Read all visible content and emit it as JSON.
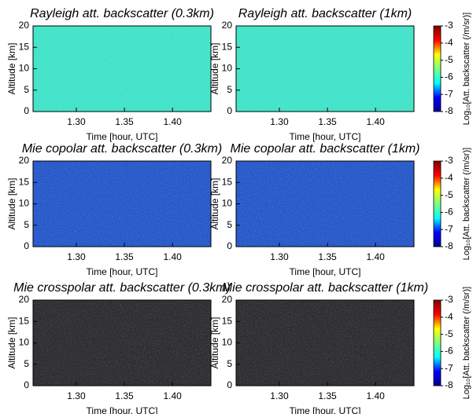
{
  "chart_data": [
    {
      "type": "heatmap",
      "title": "Rayleigh att. backscatter (0.3km)",
      "x_label": "Time [hour, UTC]",
      "y_label": "Altitude [km]",
      "xlim": [
        1.255,
        1.44
      ],
      "xticks": [
        {
          "value": 1.3,
          "label": "1.30"
        },
        {
          "value": 1.35,
          "label": "1.35"
        },
        {
          "value": 1.4,
          "label": "1.40"
        }
      ],
      "ylim": [
        0,
        20
      ],
      "yticks": [
        0,
        5,
        10,
        15,
        20
      ],
      "color": "#3fe3c8"
    },
    {
      "type": "heatmap",
      "title": "Rayleigh att. backscatter (1km)",
      "x_label": "Time [hour, UTC]",
      "y_label": "Altitude [km]",
      "xlim": [
        1.255,
        1.44
      ],
      "xticks": [
        {
          "value": 1.3,
          "label": "1.30"
        },
        {
          "value": 1.35,
          "label": "1.35"
        },
        {
          "value": 1.4,
          "label": "1.40"
        }
      ],
      "ylim": [
        0,
        20
      ],
      "yticks": [
        0,
        5,
        10,
        15,
        20
      ],
      "color": "#3fe3c8",
      "colorbar": {
        "label": "Log₁₀[Att. backscatter (/m/sr)]",
        "clim": [
          -8,
          -3
        ],
        "ticks": [
          -3,
          -4,
          -5,
          -6,
          -7,
          -8
        ],
        "colormap": [
          "#00008f",
          "#0000ff",
          "#00ffff",
          "#7fff7f",
          "#ffff00",
          "#ff0000",
          "#800000"
        ]
      }
    },
    {
      "type": "heatmap",
      "title": "Mie copolar att. backscatter (0.3km)",
      "x_label": "Time [hour, UTC]",
      "y_label": "Altitude [km]",
      "xlim": [
        1.255,
        1.44
      ],
      "xticks": [
        {
          "value": 1.3,
          "label": "1.30"
        },
        {
          "value": 1.35,
          "label": "1.35"
        },
        {
          "value": 1.4,
          "label": "1.40"
        }
      ],
      "ylim": [
        0,
        20
      ],
      "yticks": [
        0,
        5,
        10,
        15,
        20
      ],
      "color": "#2457c8"
    },
    {
      "type": "heatmap",
      "title": "Mie copolar att. backscatter (1km)",
      "x_label": "Time [hour, UTC]",
      "y_label": "Altitude [km]",
      "xlim": [
        1.255,
        1.44
      ],
      "xticks": [
        {
          "value": 1.3,
          "label": "1.30"
        },
        {
          "value": 1.35,
          "label": "1.35"
        },
        {
          "value": 1.4,
          "label": "1.40"
        }
      ],
      "ylim": [
        0,
        20
      ],
      "yticks": [
        0,
        5,
        10,
        15,
        20
      ],
      "color": "#2457c8",
      "colorbar": {
        "label": "Log₁₀[Att. backscatter (/m/sr)]",
        "clim": [
          -8,
          -3
        ],
        "ticks": [
          -3,
          -4,
          -5,
          -6,
          -7,
          -8
        ],
        "colormap": [
          "#00008f",
          "#0000ff",
          "#00ffff",
          "#7fff7f",
          "#ffff00",
          "#ff0000",
          "#800000"
        ]
      }
    },
    {
      "type": "heatmap",
      "title": "Mie crosspolar att. backscatter (0.3km)",
      "x_label": "Time [hour, UTC]",
      "y_label": "Altitude [km]",
      "xlim": [
        1.255,
        1.44
      ],
      "xticks": [
        {
          "value": 1.3,
          "label": "1.30"
        },
        {
          "value": 1.35,
          "label": "1.35"
        },
        {
          "value": 1.4,
          "label": "1.40"
        }
      ],
      "ylim": [
        0,
        20
      ],
      "yticks": [
        0,
        5,
        10,
        15,
        20
      ],
      "color": "#2c2c30"
    },
    {
      "type": "heatmap",
      "title": "Mie crosspolar att. backscatter (1km)",
      "x_label": "Time [hour, UTC]",
      "y_label": "Altitude [km]",
      "xlim": [
        1.255,
        1.44
      ],
      "xticks": [
        {
          "value": 1.3,
          "label": "1.30"
        },
        {
          "value": 1.35,
          "label": "1.35"
        },
        {
          "value": 1.4,
          "label": "1.40"
        }
      ],
      "ylim": [
        0,
        20
      ],
      "yticks": [
        0,
        5,
        10,
        15,
        20
      ],
      "color": "#2c2c30",
      "colorbar": {
        "label": "Log₁₀[Att. backscatter (/m/sr)]",
        "clim": [
          -8,
          -3
        ],
        "ticks": [
          -3,
          -4,
          -5,
          -6,
          -7,
          -8
        ],
        "colormap": [
          "#00008f",
          "#0000ff",
          "#00ffff",
          "#7fff7f",
          "#ffff00",
          "#ff0000",
          "#800000"
        ]
      }
    }
  ]
}
